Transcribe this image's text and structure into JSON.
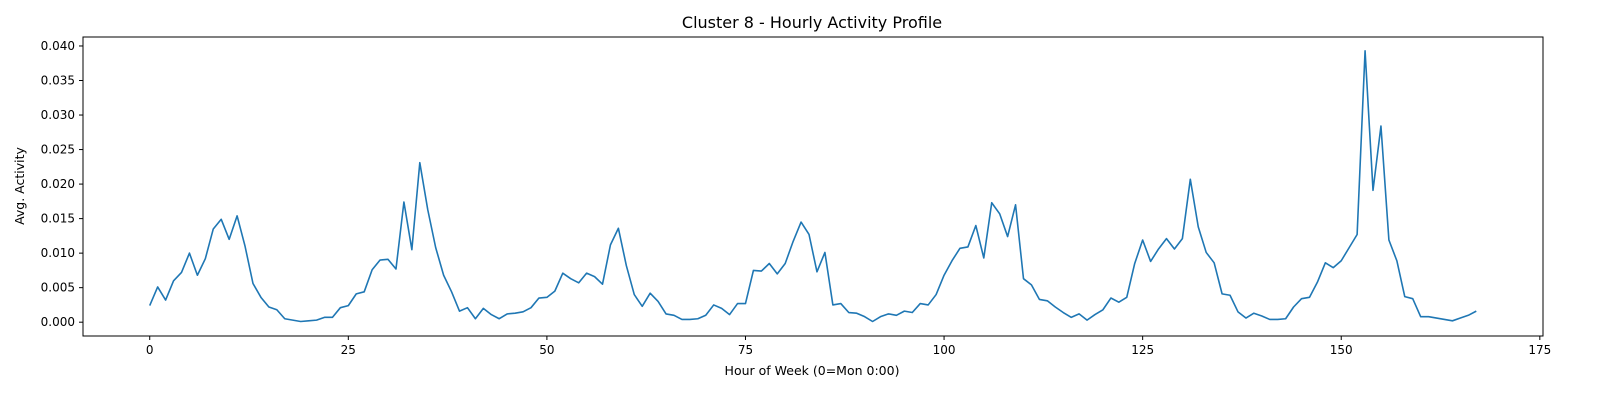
{
  "chart_data": {
    "type": "line",
    "title": "Cluster 8 - Hourly Activity Profile",
    "xlabel": "Hour of Week (0=Mon 0:00)",
    "ylabel": "Avg. Activity",
    "xlim": [
      -8.4,
      175.4
    ],
    "ylim": [
      -0.002,
      0.0413
    ],
    "x_ticks": [
      0,
      25,
      50,
      75,
      100,
      125,
      150,
      175
    ],
    "y_ticks": [
      0.0,
      0.005,
      0.01,
      0.015,
      0.02,
      0.025,
      0.03,
      0.035,
      0.04
    ],
    "x_tick_labels": [
      "0",
      "25",
      "50",
      "75",
      "100",
      "125",
      "150",
      "175"
    ],
    "y_tick_labels": [
      "0.000",
      "0.005",
      "0.010",
      "0.015",
      "0.020",
      "0.025",
      "0.030",
      "0.035",
      "0.040"
    ],
    "grid": false,
    "line_color": "#1f77b4",
    "x": [
      0,
      1,
      2,
      3,
      4,
      5,
      6,
      7,
      8,
      9,
      10,
      11,
      12,
      13,
      14,
      15,
      16,
      17,
      18,
      19,
      20,
      21,
      22,
      23,
      24,
      25,
      26,
      27,
      28,
      29,
      30,
      31,
      32,
      33,
      34,
      35,
      36,
      37,
      38,
      39,
      40,
      41,
      42,
      43,
      44,
      45,
      46,
      47,
      48,
      49,
      50,
      51,
      52,
      53,
      54,
      55,
      56,
      57,
      58,
      59,
      60,
      61,
      62,
      63,
      64,
      65,
      66,
      67,
      68,
      69,
      70,
      71,
      72,
      73,
      74,
      75,
      76,
      77,
      78,
      79,
      80,
      81,
      82,
      83,
      84,
      85,
      86,
      87,
      88,
      89,
      90,
      91,
      92,
      93,
      94,
      95,
      96,
      97,
      98,
      99,
      100,
      101,
      102,
      103,
      104,
      105,
      106,
      107,
      108,
      109,
      110,
      111,
      112,
      113,
      114,
      115,
      116,
      117,
      118,
      119,
      120,
      121,
      122,
      123,
      124,
      125,
      126,
      127,
      128,
      129,
      130,
      131,
      132,
      133,
      134,
      135,
      136,
      137,
      138,
      139,
      140,
      141,
      142,
      143,
      144,
      145,
      146,
      147,
      148,
      149,
      150,
      151,
      152,
      153,
      154,
      155,
      156,
      157,
      158,
      159,
      160,
      161,
      162,
      163,
      164,
      165,
      166,
      167
    ],
    "values": [
      0.0024,
      0.0051,
      0.0032,
      0.006,
      0.0072,
      0.01,
      0.0068,
      0.0092,
      0.0135,
      0.0149,
      0.012,
      0.0154,
      0.011,
      0.0056,
      0.0036,
      0.0022,
      0.0018,
      0.0005,
      0.0003,
      0.0001,
      0.0002,
      0.0003,
      0.0007,
      0.0007,
      0.0021,
      0.0024,
      0.0041,
      0.0044,
      0.0076,
      0.009,
      0.0091,
      0.0077,
      0.0174,
      0.0105,
      0.0231,
      0.0163,
      0.0108,
      0.0068,
      0.0044,
      0.0016,
      0.0021,
      0.0005,
      0.002,
      0.0011,
      0.0005,
      0.0012,
      0.0013,
      0.0015,
      0.0021,
      0.0035,
      0.0036,
      0.0045,
      0.0071,
      0.0063,
      0.0057,
      0.0071,
      0.0066,
      0.0055,
      0.0112,
      0.0136,
      0.0082,
      0.004,
      0.0023,
      0.0042,
      0.003,
      0.0012,
      0.001,
      0.0004,
      0.0004,
      0.0005,
      0.001,
      0.0025,
      0.002,
      0.0011,
      0.0027,
      0.0027,
      0.0075,
      0.0074,
      0.0085,
      0.007,
      0.0085,
      0.0117,
      0.0145,
      0.0127,
      0.0073,
      0.0101,
      0.0025,
      0.0027,
      0.0014,
      0.0013,
      0.0008,
      0.0001,
      0.0008,
      0.0012,
      0.001,
      0.0016,
      0.0014,
      0.0027,
      0.0025,
      0.004,
      0.0068,
      0.0089,
      0.0107,
      0.0109,
      0.014,
      0.0093,
      0.0173,
      0.0157,
      0.0124,
      0.017,
      0.0063,
      0.0054,
      0.0033,
      0.0031,
      0.0022,
      0.0014,
      0.0007,
      0.0012,
      0.0003,
      0.0011,
      0.0018,
      0.0035,
      0.0029,
      0.0036,
      0.0085,
      0.0119,
      0.0088,
      0.0106,
      0.0121,
      0.0106,
      0.0121,
      0.0207,
      0.0138,
      0.0101,
      0.0086,
      0.0041,
      0.0039,
      0.0015,
      0.0006,
      0.0013,
      0.0009,
      0.0004,
      0.0004,
      0.0005,
      0.0022,
      0.0034,
      0.0036,
      0.0058,
      0.0086,
      0.0079,
      0.0089,
      0.0108,
      0.0127,
      0.0393,
      0.0191,
      0.0284,
      0.0119,
      0.0089,
      0.0037,
      0.0034,
      0.0008,
      0.0008,
      0.0006,
      0.0004,
      0.0002,
      0.0006,
      0.001,
      0.0016
    ]
  }
}
